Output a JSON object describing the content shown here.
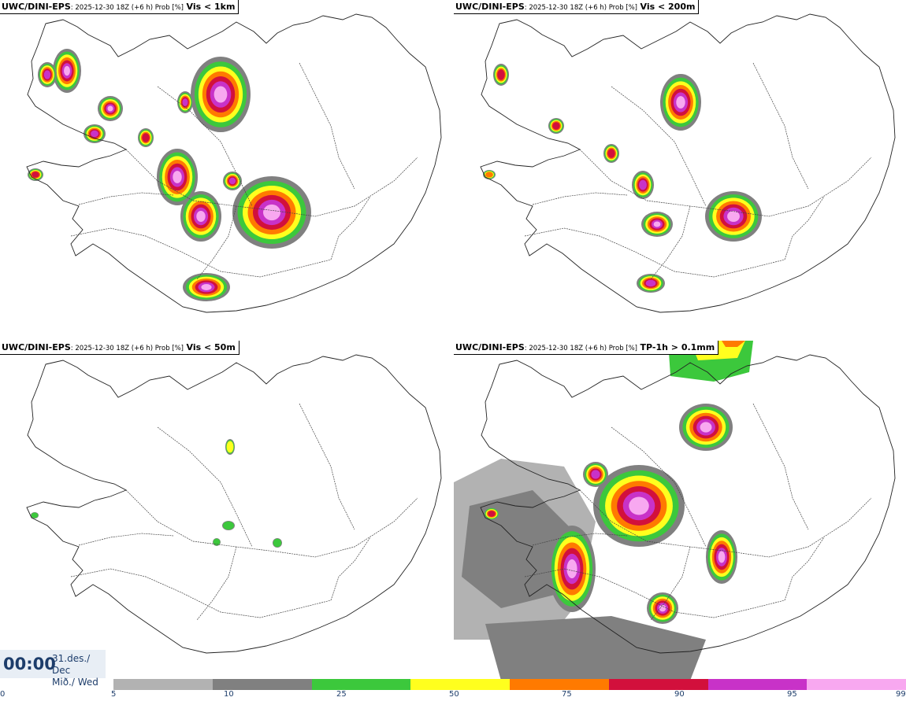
{
  "panels": [
    {
      "model": "UWC/DINI-EPS",
      "info": ": 2025-12-30 18Z (+6 h) Prob [%]",
      "variable": "Vis < 1km"
    },
    {
      "model": "UWC/DINI-EPS",
      "info": ": 2025-12-30 18Z (+6 h) Prob [%]",
      "variable": "Vis < 200m"
    },
    {
      "model": "UWC/DINI-EPS",
      "info": ": 2025-12-30 18Z (+6 h) Prob [%]",
      "variable": "Vis < 50m"
    },
    {
      "model": "UWC/DINI-EPS",
      "info": ": 2025-12-30 18Z (+6 h) Prob [%]",
      "variable": "TP-1h > 0.1mm"
    }
  ],
  "time": {
    "clock": "00:00",
    "date_line": "31.des./ Dec",
    "day_line": "Mið./ Wed"
  },
  "colorbar": {
    "ticks": [
      "0",
      "5",
      "10",
      "25",
      "50",
      "75",
      "90",
      "95",
      "99"
    ],
    "colors": [
      "#b2b2b2",
      "#808080",
      "#3cc83c",
      "#ffff1e",
      "#ff7a00",
      "#d2103c",
      "#c832c8",
      "#f8a8f0"
    ]
  },
  "map_colors": {
    "coast": "#222222",
    "roads": "#444444"
  }
}
